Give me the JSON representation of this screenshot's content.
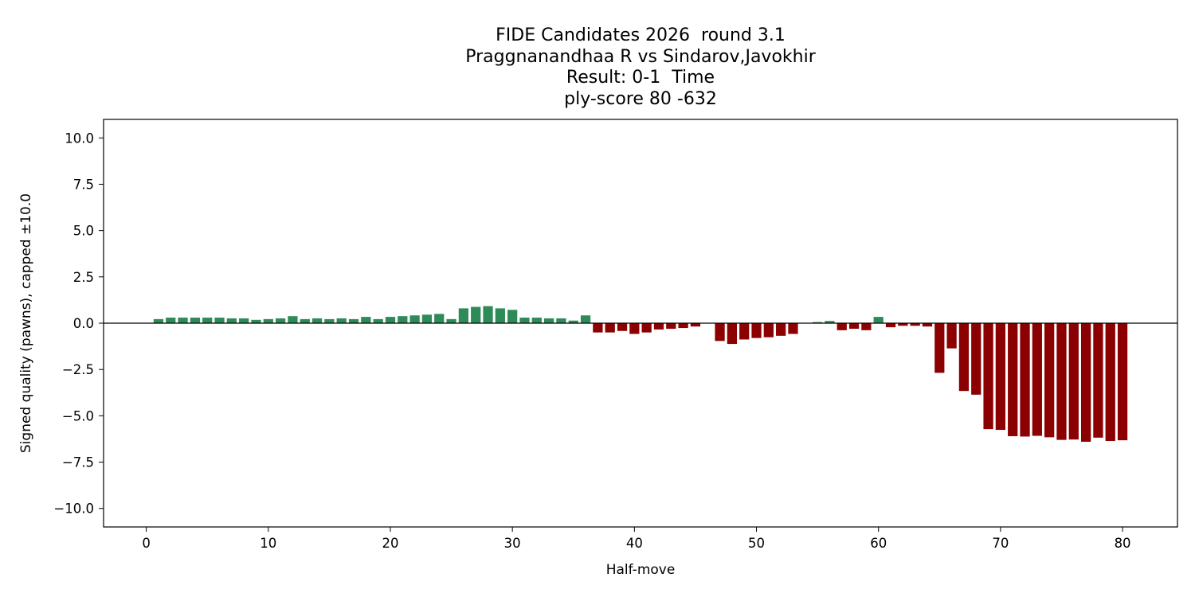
{
  "chart_data": {
    "type": "bar",
    "title_lines": [
      "FIDE Candidates 2026  round 3.1",
      "Praggnanandhaa R vs Sindarov,Javokhir",
      "Result: 0-1  Time",
      "ply-score 80 -632"
    ],
    "xlabel": "Half-move",
    "ylabel": "Signed quality (pawns), capped ±10.0",
    "xlim": [
      -3.5,
      84.5
    ],
    "ylim": [
      -11,
      11
    ],
    "x_ticks": [
      0,
      10,
      20,
      30,
      40,
      50,
      60,
      70,
      80
    ],
    "x_tick_labels": [
      "0",
      "10",
      "20",
      "30",
      "40",
      "50",
      "60",
      "70",
      "80"
    ],
    "y_ticks": [
      10,
      7.5,
      5,
      2.5,
      0,
      -2.5,
      -5,
      -7.5,
      -10
    ],
    "y_tick_labels": [
      "10.0",
      "7.5",
      "5.0",
      "2.5",
      "0.0",
      "−2.5",
      "−5.0",
      "−7.5",
      "−10.0"
    ],
    "zero_line": true,
    "grid": false,
    "colors": {
      "positive": "#2e8b57",
      "negative": "#8b0000",
      "axis": "#000000"
    },
    "x": [
      1,
      2,
      3,
      4,
      5,
      6,
      7,
      8,
      9,
      10,
      11,
      12,
      13,
      14,
      15,
      16,
      17,
      18,
      19,
      20,
      21,
      22,
      23,
      24,
      25,
      26,
      27,
      28,
      29,
      30,
      31,
      32,
      33,
      34,
      35,
      36,
      37,
      38,
      39,
      40,
      41,
      42,
      43,
      44,
      45,
      46,
      47,
      48,
      49,
      50,
      51,
      52,
      53,
      54,
      55,
      56,
      57,
      58,
      59,
      60,
      61,
      62,
      63,
      64,
      65,
      66,
      67,
      68,
      69,
      70,
      71,
      72,
      73,
      74,
      75,
      76,
      77,
      78,
      79,
      80
    ],
    "values": [
      0.22,
      0.3,
      0.3,
      0.3,
      0.3,
      0.3,
      0.26,
      0.26,
      0.18,
      0.22,
      0.26,
      0.38,
      0.22,
      0.26,
      0.22,
      0.26,
      0.22,
      0.34,
      0.22,
      0.34,
      0.38,
      0.42,
      0.46,
      0.5,
      0.22,
      0.8,
      0.88,
      0.92,
      0.8,
      0.72,
      0.3,
      0.3,
      0.26,
      0.26,
      0.14,
      0.42,
      -0.5,
      -0.5,
      -0.42,
      -0.58,
      -0.5,
      -0.34,
      -0.3,
      -0.26,
      -0.18,
      0,
      -0.96,
      -1.12,
      -0.88,
      -0.8,
      -0.76,
      -0.68,
      -0.58,
      0,
      0.06,
      0.12,
      -0.38,
      -0.3,
      -0.38,
      0.34,
      -0.22,
      -0.14,
      -0.14,
      -0.18,
      -2.68,
      -1.36,
      -3.66,
      -3.86,
      -5.72,
      -5.76,
      -6.1,
      -6.12,
      -6.08,
      -6.16,
      -6.3,
      -6.28,
      -6.4,
      -6.18,
      -6.36,
      -6.32
    ]
  }
}
